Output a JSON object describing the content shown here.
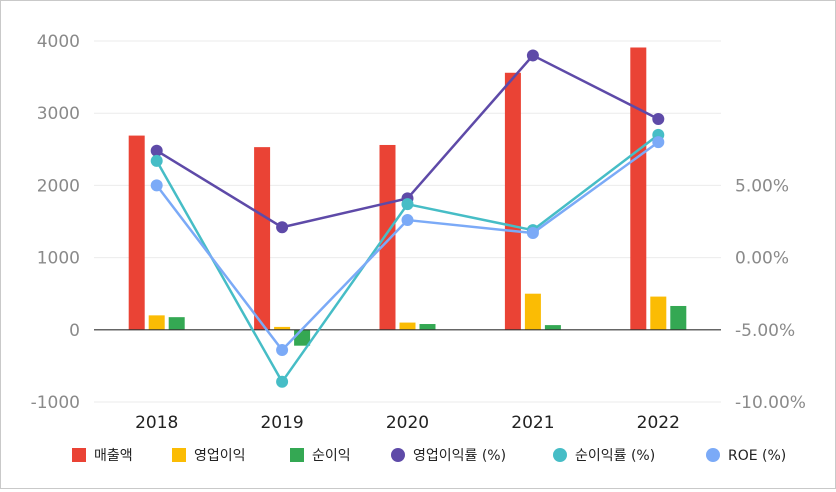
{
  "chart_data": {
    "type": "bar",
    "categories": [
      "2018",
      "2019",
      "2020",
      "2021",
      "2022"
    ],
    "y_left": {
      "ticks": [
        "-1000",
        "0",
        "1000",
        "2000",
        "3000",
        "4000"
      ],
      "ylim": [
        -1000,
        4000
      ]
    },
    "y_right": {
      "ticks": [
        "-10.00%",
        "-5.00%",
        "0.00%",
        "5.00%"
      ],
      "ylim": [
        -10,
        15
      ]
    },
    "grid": true,
    "legend_position": "bottom",
    "series": [
      {
        "name": "매출액",
        "kind": "bar",
        "axis": "left",
        "color": "#ea4335",
        "values": [
          2690,
          2530,
          2560,
          3560,
          3910
        ]
      },
      {
        "name": "영업이익",
        "kind": "bar",
        "axis": "left",
        "color": "#fbbc04",
        "values": [
          200,
          40,
          100,
          500,
          460
        ]
      },
      {
        "name": "순이익",
        "kind": "bar",
        "axis": "left",
        "color": "#34a853",
        "values": [
          175,
          -220,
          80,
          65,
          330
        ]
      },
      {
        "name": "영업이익률 (%)",
        "kind": "line",
        "axis": "right",
        "color": "#5e4aa8",
        "values": [
          7.4,
          2.1,
          4.1,
          14.0,
          9.6
        ]
      },
      {
        "name": "순이익률 (%)",
        "kind": "line",
        "axis": "right",
        "color": "#46bdc6",
        "values": [
          6.7,
          -8.6,
          3.7,
          1.9,
          8.5
        ]
      },
      {
        "name": "ROE (%)",
        "kind": "line",
        "axis": "right",
        "color": "#7baaf7",
        "values": [
          5.0,
          -6.4,
          2.6,
          1.7,
          8.0
        ]
      }
    ]
  }
}
